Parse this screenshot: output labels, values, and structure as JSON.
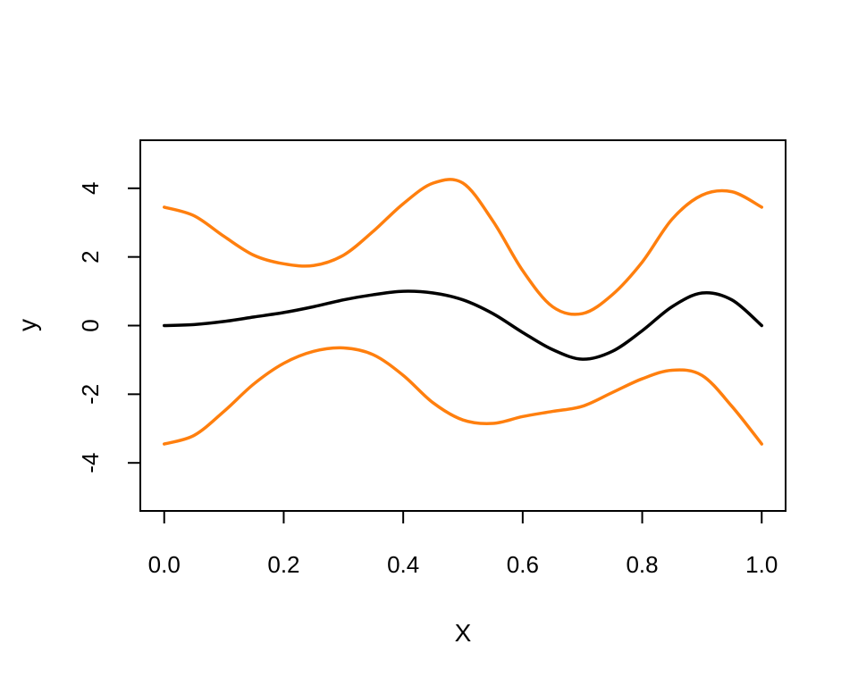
{
  "chart_data": {
    "type": "line",
    "title": "",
    "xlabel": "X",
    "ylabel": "y",
    "xlim": [
      -0.04,
      1.04
    ],
    "ylim": [
      -5.4,
      5.4
    ],
    "x_ticks": [
      0.0,
      0.2,
      0.4,
      0.6,
      0.8,
      1.0
    ],
    "x_tick_labels": [
      "0.0",
      "0.2",
      "0.4",
      "0.6",
      "0.8",
      "1.0"
    ],
    "y_ticks": [
      -4,
      -2,
      0,
      2,
      4
    ],
    "y_tick_labels": [
      "-4",
      "-2",
      "0",
      "2",
      "4"
    ],
    "grid": false,
    "legend": "none",
    "x": [
      0.0,
      0.05,
      0.1,
      0.15,
      0.2,
      0.25,
      0.3,
      0.35,
      0.4,
      0.45,
      0.5,
      0.55,
      0.6,
      0.65,
      0.7,
      0.75,
      0.8,
      0.85,
      0.9,
      0.95,
      1.0
    ],
    "series": [
      {
        "color": "#FF7F0E",
        "values": [
          3.45,
          3.2,
          2.6,
          2.05,
          1.8,
          1.75,
          2.05,
          2.75,
          3.55,
          4.15,
          4.15,
          3.05,
          1.6,
          0.55,
          0.35,
          0.9,
          1.85,
          3.1,
          3.8,
          3.9,
          3.45
        ]
      },
      {
        "color": "#000000",
        "values": [
          0.0,
          0.03,
          0.12,
          0.25,
          0.38,
          0.55,
          0.75,
          0.9,
          1.0,
          0.95,
          0.75,
          0.35,
          -0.2,
          -0.7,
          -0.98,
          -0.75,
          -0.15,
          0.55,
          0.95,
          0.75,
          0.0
        ]
      },
      {
        "color": "#FF7F0E",
        "values": [
          -3.45,
          -3.2,
          -2.5,
          -1.7,
          -1.1,
          -0.75,
          -0.65,
          -0.85,
          -1.45,
          -2.25,
          -2.75,
          -2.85,
          -2.65,
          -2.5,
          -2.35,
          -1.95,
          -1.55,
          -1.3,
          -1.45,
          -2.35,
          -3.45
        ]
      }
    ]
  }
}
